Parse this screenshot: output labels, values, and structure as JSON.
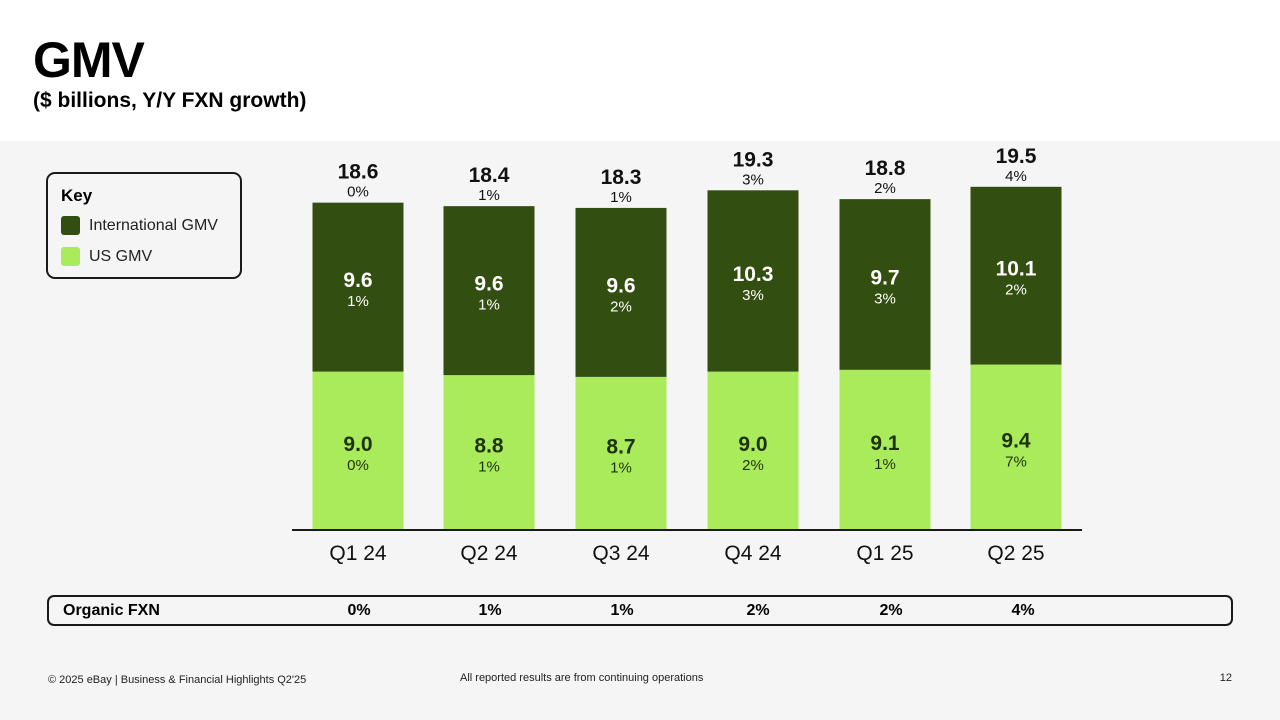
{
  "header": {
    "title": "GMV",
    "subtitle": "($ billions, Y/Y FXN growth)"
  },
  "colors": {
    "international": "#324e10",
    "us": "#aaeb5b",
    "axis": "#1a1a1a"
  },
  "key": {
    "title": "Key",
    "items": [
      {
        "label": "International GMV",
        "color": "#324e10"
      },
      {
        "label": "US GMV",
        "color": "#aaeb5b"
      }
    ]
  },
  "chart_data": {
    "type": "bar",
    "stacked": true,
    "categories": [
      "Q1 24",
      "Q2 24",
      "Q3 24",
      "Q4 24",
      "Q1 25",
      "Q2 25"
    ],
    "series": [
      {
        "name": "US GMV",
        "values": [
          9.0,
          8.8,
          8.7,
          9.0,
          9.1,
          9.4
        ],
        "growth": [
          "0%",
          "1%",
          "1%",
          "2%",
          "1%",
          "7%"
        ]
      },
      {
        "name": "International GMV",
        "values": [
          9.6,
          9.6,
          9.6,
          10.3,
          9.7,
          10.1
        ],
        "growth": [
          "1%",
          "1%",
          "2%",
          "3%",
          "3%",
          "2%"
        ]
      }
    ],
    "totals": {
      "values": [
        "18.6",
        "18.4",
        "18.3",
        "19.3",
        "18.8",
        "19.5"
      ],
      "growth": [
        "0%",
        "1%",
        "1%",
        "3%",
        "2%",
        "4%"
      ]
    },
    "value_labels": {
      "us": [
        "9.0",
        "8.8",
        "8.7",
        "9.0",
        "9.1",
        "9.4"
      ],
      "international": [
        "9.6",
        "9.6",
        "9.6",
        "10.3",
        "9.7",
        "10.1"
      ]
    },
    "title": "GMV",
    "ylabel": "$ billions",
    "ylim": [
      0,
      21.2
    ]
  },
  "organic_fxn": {
    "label": "Organic FXN",
    "values": [
      "0%",
      "1%",
      "1%",
      "2%",
      "2%",
      "4%"
    ]
  },
  "footer": {
    "left": "© 2025 eBay | Business & Financial Highlights Q2'25",
    "middle": "All reported results are from continuing operations",
    "page": "12"
  }
}
